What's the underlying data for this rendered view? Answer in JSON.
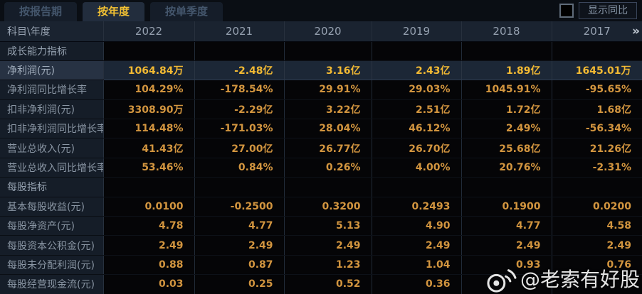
{
  "tabs": [
    {
      "label": "按报告期",
      "active": false
    },
    {
      "label": "按年度",
      "active": true
    },
    {
      "label": "按单季度",
      "active": false
    }
  ],
  "controls": {
    "show_yoy_label": "显示同比",
    "checkbox_checked": false
  },
  "table": {
    "corner_label": "科目\\年度",
    "years": [
      "2022",
      "2021",
      "2020",
      "2019",
      "2018",
      "2017"
    ],
    "more_icon": "»",
    "rows": [
      {
        "type": "section",
        "label": "成长能力指标",
        "values": [
          "",
          "",
          "",
          "",
          "",
          ""
        ]
      },
      {
        "type": "data",
        "highlight": true,
        "label": "净利润(元)",
        "values": [
          "1064.84万",
          "-2.48亿",
          "3.16亿",
          "2.43亿",
          "1.89亿",
          "1645.01万"
        ]
      },
      {
        "type": "data",
        "label": "净利润同比增长率",
        "values": [
          "104.29%",
          "-178.54%",
          "29.91%",
          "29.03%",
          "1045.91%",
          "-95.65%"
        ]
      },
      {
        "type": "data",
        "label": "扣非净利润(元)",
        "values": [
          "3308.90万",
          "-2.29亿",
          "3.22亿",
          "2.51亿",
          "1.72亿",
          "1.68亿"
        ]
      },
      {
        "type": "data",
        "label": "扣非净利润同比增长率",
        "values": [
          "114.48%",
          "-171.03%",
          "28.04%",
          "46.12%",
          "2.49%",
          "-56.34%"
        ]
      },
      {
        "type": "data",
        "label": "营业总收入(元)",
        "values": [
          "41.43亿",
          "27.00亿",
          "26.77亿",
          "26.70亿",
          "25.68亿",
          "21.26亿"
        ]
      },
      {
        "type": "data",
        "label": "营业总收入同比增长率",
        "values": [
          "53.46%",
          "0.84%",
          "0.26%",
          "4.00%",
          "20.76%",
          "-2.31%"
        ]
      },
      {
        "type": "section",
        "label": "每股指标",
        "values": [
          "",
          "",
          "",
          "",
          "",
          ""
        ]
      },
      {
        "type": "data",
        "label": "基本每股收益(元)",
        "values": [
          "0.0100",
          "-0.2500",
          "0.3200",
          "0.2493",
          "0.1900",
          "0.0200"
        ]
      },
      {
        "type": "data",
        "label": "每股净资产(元)",
        "values": [
          "4.78",
          "4.77",
          "5.13",
          "4.90",
          "4.77",
          "4.58"
        ]
      },
      {
        "type": "data",
        "label": "每股资本公积金(元)",
        "values": [
          "2.49",
          "2.49",
          "2.49",
          "2.49",
          "2.49",
          "2.49"
        ]
      },
      {
        "type": "data",
        "label": "每股未分配利润(元)",
        "values": [
          "0.88",
          "0.87",
          "1.23",
          "1.04",
          "0.93",
          "0.76"
        ]
      },
      {
        "type": "data",
        "label": "每股经营现金流(元)",
        "values": [
          "0.03",
          "0.25",
          "0.52",
          "0.36",
          "",
          ""
        ]
      }
    ]
  },
  "watermark": {
    "text": "@老索有好股",
    "icon": "weibo-eye"
  },
  "colors": {
    "accent_gold": "#f3ba33",
    "value_orange": "#d2953f",
    "tab_active_text": "#f2c133",
    "header_bg": "#1a2330",
    "label_col_bg": "#151d28",
    "highlight_row_bg": "#1c2736",
    "data_cell_bg": "#050507"
  }
}
